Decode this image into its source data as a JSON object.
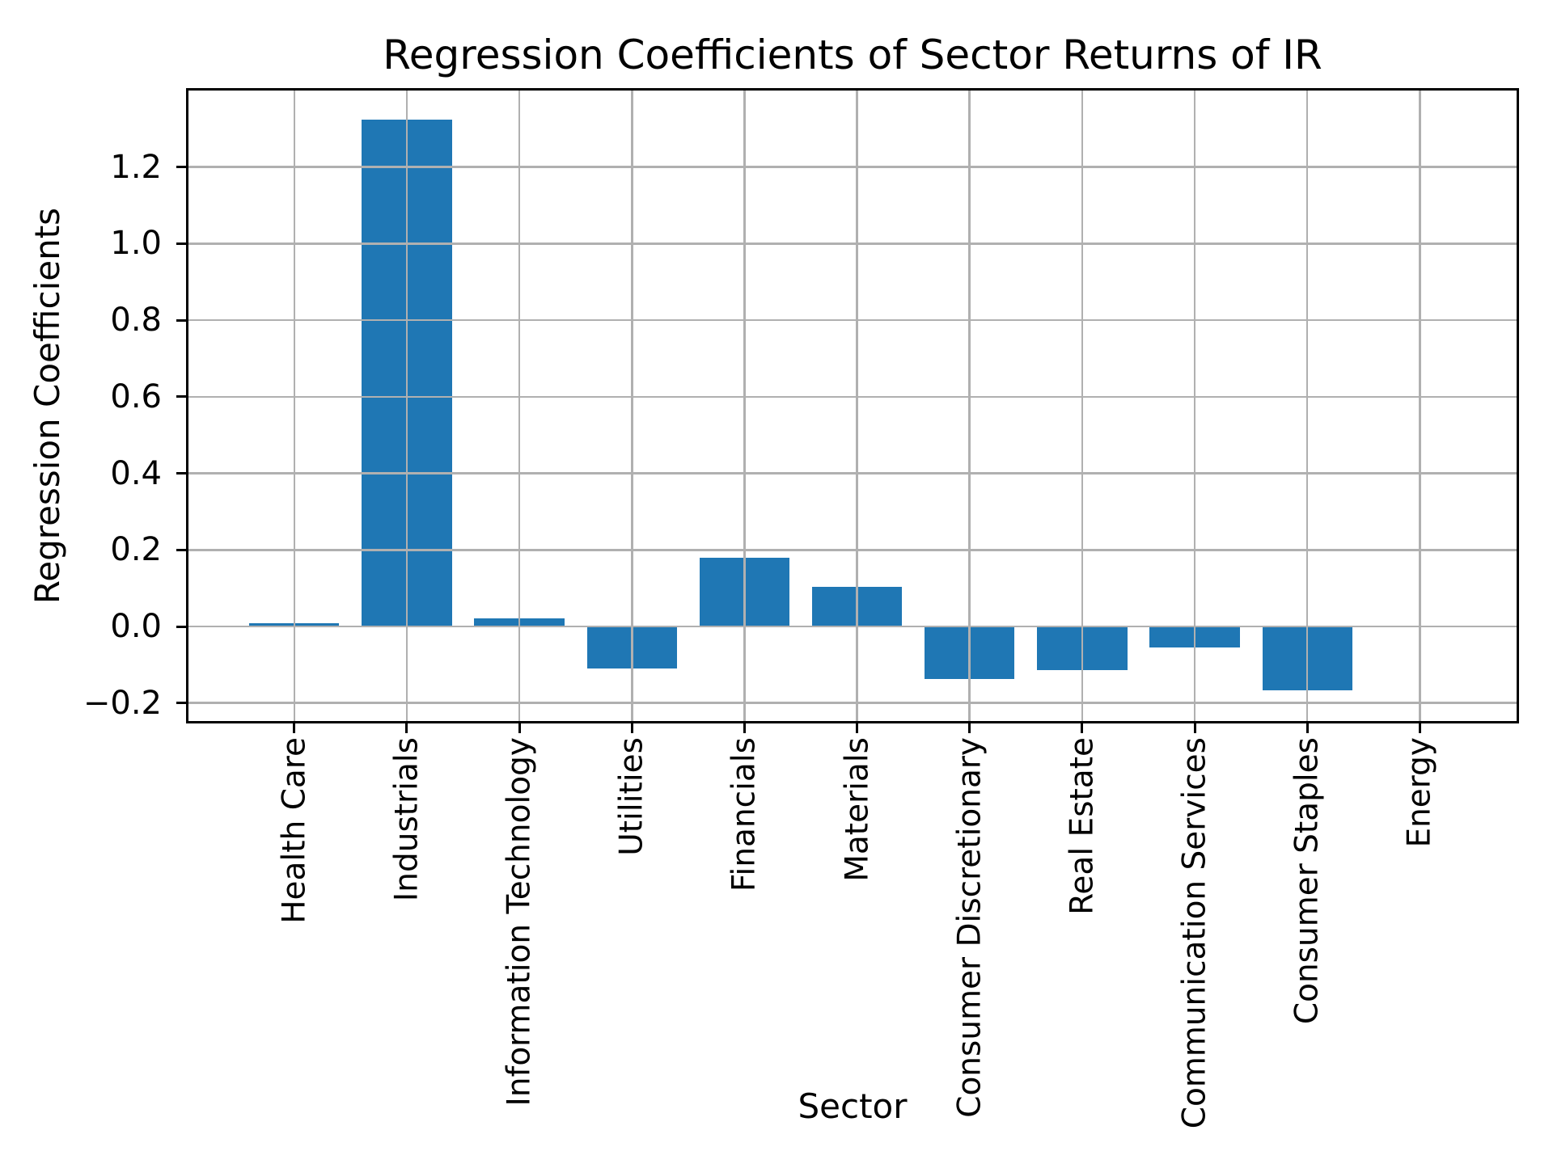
{
  "chart_data": {
    "type": "bar",
    "title": "Regression Coefficients of Sector Returns of IR",
    "xlabel": "Sector",
    "ylabel": "Regression Coefficients",
    "categories": [
      "Health Care",
      "Industrials",
      "Information Technology",
      "Utilities",
      "Financials",
      "Materials",
      "Consumer Discretionary",
      "Real Estate",
      "Communication Services",
      "Consumer Staples",
      "Energy"
    ],
    "values": [
      0.008,
      1.325,
      0.021,
      -0.109,
      0.179,
      0.103,
      -0.137,
      -0.114,
      -0.055,
      -0.167,
      0.0
    ],
    "ylim": [
      -0.247,
      1.4
    ],
    "yticks": [
      -0.2,
      0.0,
      0.2,
      0.4,
      0.6,
      0.8,
      1.0,
      1.2
    ],
    "xlim": [
      -0.94,
      10.86
    ],
    "grid": true,
    "legend_position": "none",
    "bar_width_frac": 0.8,
    "bar_color": "#1f77b4",
    "grid_color": "#b0b0b0",
    "spine_color": "#000000",
    "text_color": "#000000"
  }
}
